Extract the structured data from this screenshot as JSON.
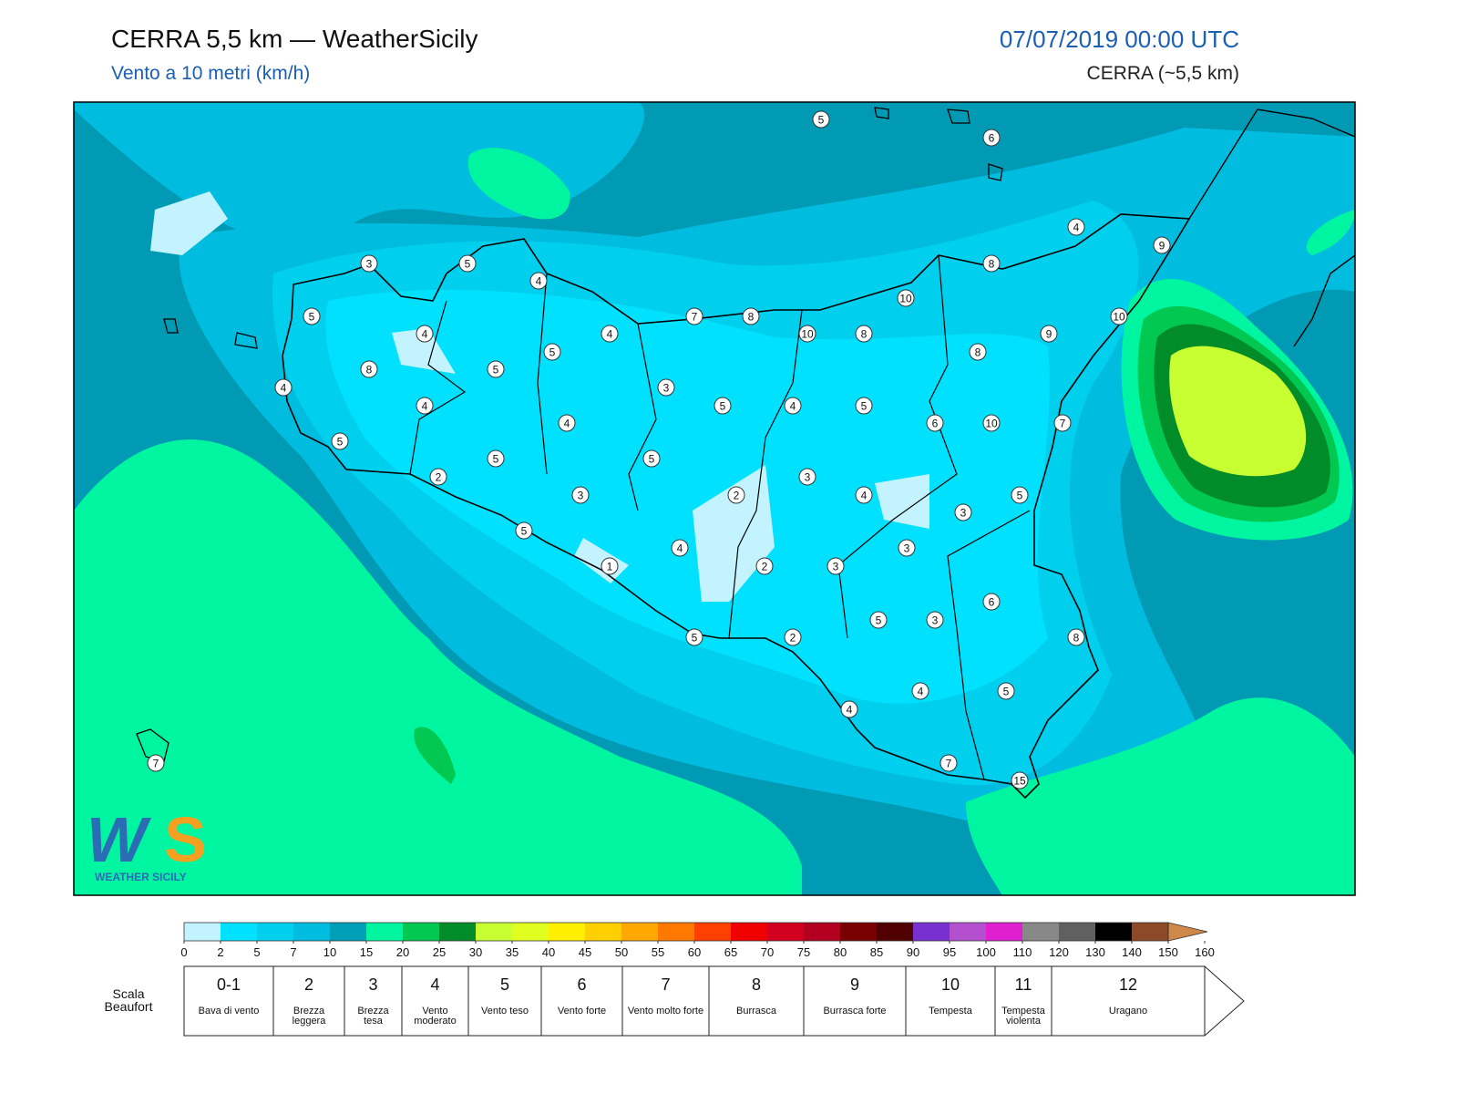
{
  "header": {
    "title": "CERRA 5,5 km — WeatherSicily",
    "subtitle": "Vento a 10 metri (km/h)",
    "date": "07/07/2019 00:00 UTC",
    "model": "CERRA (~5,5 km)"
  },
  "map": {
    "stations": [
      5,
      6,
      4,
      9,
      3,
      5,
      4,
      8,
      10,
      5,
      7,
      8,
      10,
      4,
      4,
      10,
      8,
      9,
      5,
      8,
      8,
      5,
      4,
      3,
      4,
      5,
      4,
      5,
      4,
      6,
      10,
      7,
      5,
      5,
      5,
      2,
      3,
      3,
      2,
      4,
      5,
      3,
      5,
      4,
      3,
      1,
      2,
      3,
      6,
      5,
      3,
      5,
      2,
      8,
      4,
      5,
      4,
      7,
      15,
      7
    ],
    "logo": "WEATHER SICILY"
  },
  "colorbar": {
    "ticks": [
      0,
      2,
      5,
      7,
      10,
      15,
      20,
      25,
      30,
      35,
      40,
      45,
      50,
      55,
      60,
      65,
      70,
      75,
      80,
      85,
      90,
      95,
      100,
      110,
      120,
      130,
      140,
      150,
      160
    ],
    "colors": [
      "#c3f3ff",
      "#00e1ff",
      "#00cfee",
      "#00bde0",
      "#009fb8",
      "#00f5a0",
      "#00c850",
      "#008c28",
      "#c8ff32",
      "#e0ff20",
      "#fff000",
      "#ffd000",
      "#ffa800",
      "#ff7800",
      "#ff4000",
      "#f00000",
      "#d40020",
      "#b40020",
      "#780000",
      "#500000",
      "#7830d0",
      "#b450d0",
      "#e020d0",
      "#888888",
      "#606060",
      "#000000",
      "#8c4a28"
    ],
    "arrow_color": "#d08848"
  },
  "beaufort": {
    "label": "Scala Beaufort",
    "entries": [
      {
        "force": "0-1",
        "name": "Bava di vento"
      },
      {
        "force": "2",
        "name": "Brezza leggera"
      },
      {
        "force": "3",
        "name": "Brezza tesa"
      },
      {
        "force": "4",
        "name": "Vento moderato"
      },
      {
        "force": "5",
        "name": "Vento teso"
      },
      {
        "force": "6",
        "name": "Vento forte"
      },
      {
        "force": "7",
        "name": "Vento molto forte"
      },
      {
        "force": "8",
        "name": "Burrasca"
      },
      {
        "force": "9",
        "name": "Burrasca forte"
      },
      {
        "force": "10",
        "name": "Tempesta"
      },
      {
        "force": "11",
        "name": "Tempesta violenta"
      },
      {
        "force": "12",
        "name": "Uragano"
      }
    ]
  }
}
